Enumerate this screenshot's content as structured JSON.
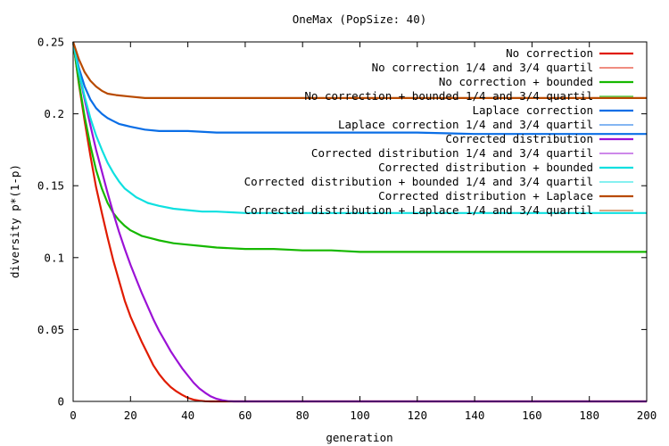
{
  "chart_data": {
    "type": "line",
    "title": "OneMax (PopSize: 40)",
    "xlabel": "generation",
    "ylabel": "diversity p*(1-p)",
    "xlim": [
      0,
      200
    ],
    "ylim": [
      0,
      0.25
    ],
    "xticks": [
      0,
      20,
      40,
      60,
      80,
      100,
      120,
      140,
      160,
      180,
      200
    ],
    "yticks": [
      0,
      0.05,
      0.1,
      0.15,
      0.2,
      0.25
    ],
    "xtick_labels": [
      "0",
      "20",
      "40",
      "60",
      "80",
      "100",
      "120",
      "140",
      "160",
      "180",
      "200"
    ],
    "ytick_labels": [
      "0",
      "0.05",
      "0.1",
      "0.15",
      "0.2",
      "0.25"
    ],
    "grid": false,
    "legend_position": "top-right",
    "series": [
      {
        "name": "No correction",
        "color": "#e01b00",
        "style": "main",
        "x": [
          0,
          2,
          4,
          6,
          8,
          10,
          12,
          14,
          16,
          18,
          20,
          22,
          24,
          26,
          28,
          30,
          32,
          34,
          36,
          38,
          40,
          42,
          44,
          46,
          48,
          50,
          60,
          80,
          100,
          120,
          140,
          160,
          180,
          200
        ],
        "y": [
          0.25,
          0.221,
          0.195,
          0.171,
          0.149,
          0.131,
          0.114,
          0.098,
          0.084,
          0.07,
          0.059,
          0.05,
          0.041,
          0.033,
          0.025,
          0.019,
          0.014,
          0.01,
          0.007,
          0.0045,
          0.0025,
          0.0012,
          0.0005,
          0.0001,
          0,
          0,
          0,
          0,
          0,
          0,
          0,
          0,
          0,
          0
        ]
      },
      {
        "name": "No correction 1/4 and 3/4 quartil",
        "color": "#e01b00",
        "style": "quartile",
        "x": [],
        "y": []
      },
      {
        "name": "No correction + bounded",
        "color": "#16b800",
        "style": "main",
        "x": [
          0,
          2,
          4,
          6,
          8,
          10,
          12,
          14,
          16,
          18,
          20,
          22,
          24,
          26,
          28,
          30,
          35,
          40,
          45,
          50,
          60,
          70,
          80,
          90,
          100,
          120,
          140,
          160,
          180,
          200
        ],
        "y": [
          0.25,
          0.222,
          0.198,
          0.178,
          0.161,
          0.148,
          0.138,
          0.131,
          0.126,
          0.122,
          0.119,
          0.117,
          0.115,
          0.114,
          0.113,
          0.112,
          0.11,
          0.109,
          0.108,
          0.107,
          0.106,
          0.106,
          0.105,
          0.105,
          0.104,
          0.104,
          0.104,
          0.104,
          0.104,
          0.104
        ]
      },
      {
        "name": "No correction + bounded 1/4 and 3/4 quartil",
        "color": "#16b800",
        "style": "quartile",
        "x": [],
        "y": []
      },
      {
        "name": "Laplace correction",
        "color": "#0a6ee6",
        "style": "main",
        "x": [
          0,
          2,
          4,
          6,
          8,
          10,
          12,
          14,
          16,
          18,
          20,
          25,
          30,
          40,
          50,
          60,
          80,
          100,
          120,
          140,
          160,
          180,
          200
        ],
        "y": [
          0.25,
          0.232,
          0.219,
          0.21,
          0.204,
          0.2,
          0.197,
          0.195,
          0.193,
          0.192,
          0.191,
          0.189,
          0.188,
          0.188,
          0.187,
          0.187,
          0.187,
          0.187,
          0.187,
          0.186,
          0.186,
          0.186,
          0.186
        ]
      },
      {
        "name": "Laplace correction 1/4 and 3/4 quartil",
        "color": "#0a6ee6",
        "style": "quartile",
        "x": [],
        "y": []
      },
      {
        "name": "Corrected distribution",
        "color": "#9b12d6",
        "style": "main",
        "x": [
          0,
          2,
          4,
          6,
          8,
          10,
          12,
          14,
          16,
          18,
          20,
          22,
          24,
          26,
          28,
          30,
          32,
          34,
          36,
          38,
          40,
          42,
          44,
          46,
          48,
          50,
          52,
          54,
          56,
          58,
          60,
          80,
          100,
          120,
          140,
          160,
          180,
          200
        ],
        "y": [
          0.25,
          0.229,
          0.21,
          0.192,
          0.175,
          0.16,
          0.145,
          0.131,
          0.118,
          0.106,
          0.095,
          0.085,
          0.075,
          0.066,
          0.057,
          0.049,
          0.042,
          0.035,
          0.029,
          0.023,
          0.018,
          0.013,
          0.009,
          0.006,
          0.0035,
          0.0018,
          0.0008,
          0.0002,
          0,
          0,
          0,
          0,
          0,
          0,
          0,
          0,
          0,
          0
        ]
      },
      {
        "name": "Corrected distribution 1/4 and 3/4 quartil",
        "color": "#9b12d6",
        "style": "quartile",
        "x": [],
        "y": []
      },
      {
        "name": "Corrected distribution + bounded",
        "color": "#0ee0e0",
        "style": "main",
        "x": [
          0,
          2,
          4,
          6,
          8,
          10,
          12,
          14,
          16,
          18,
          20,
          22,
          24,
          26,
          28,
          30,
          35,
          40,
          45,
          50,
          60,
          70,
          80,
          100,
          120,
          140,
          160,
          180,
          200
        ],
        "y": [
          0.25,
          0.229,
          0.212,
          0.197,
          0.185,
          0.175,
          0.166,
          0.159,
          0.153,
          0.148,
          0.145,
          0.142,
          0.14,
          0.138,
          0.137,
          0.136,
          0.134,
          0.133,
          0.132,
          0.132,
          0.131,
          0.131,
          0.131,
          0.131,
          0.131,
          0.131,
          0.131,
          0.131,
          0.131
        ]
      },
      {
        "name": "Corrected distribution + bounded 1/4 and 3/4 quartil",
        "color": "#0ee0e0",
        "style": "quartile",
        "x": [],
        "y": []
      },
      {
        "name": "Corrected distribution + Laplace",
        "color": "#b84a00",
        "style": "main",
        "x": [
          0,
          2,
          4,
          6,
          8,
          10,
          12,
          15,
          20,
          25,
          30,
          40,
          50,
          60,
          80,
          100,
          120,
          140,
          160,
          180,
          200
        ],
        "y": [
          0.25,
          0.238,
          0.229,
          0.223,
          0.219,
          0.216,
          0.214,
          0.213,
          0.212,
          0.211,
          0.211,
          0.211,
          0.211,
          0.211,
          0.211,
          0.211,
          0.211,
          0.211,
          0.211,
          0.211,
          0.211
        ]
      },
      {
        "name": "Corrected distribution + Laplace 1/4 and 3/4 quartil",
        "color": "#b84a00",
        "style": "quartile",
        "x": [],
        "y": []
      }
    ]
  }
}
